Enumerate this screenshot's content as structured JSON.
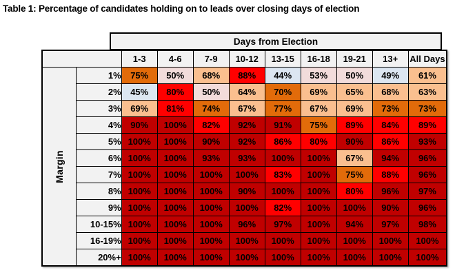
{
  "title": "Table 1: Percentage of candidates holding on to leads over closing days of election",
  "table": {
    "column_group_header": "Days from Election",
    "row_group_header": "Margin",
    "columns": [
      "1-3",
      "4-6",
      "7-9",
      "10-12",
      "13-15",
      "16-18",
      "19-21",
      "13+",
      "All Days"
    ],
    "rows": [
      "1%",
      "2%",
      "3%",
      "4%",
      "5%",
      "6%",
      "7%",
      "8%",
      "9%",
      "10-15%",
      "16-19%",
      "20%+"
    ],
    "value_suffix": "%"
  },
  "chart_data": {
    "type": "heatmap",
    "title": "Table 1: Percentage of candidates holding on to leads over closing days of election",
    "xlabel": "Days from Election",
    "ylabel": "Margin",
    "categories_x": [
      "1-3",
      "4-6",
      "7-9",
      "10-12",
      "13-15",
      "16-18",
      "19-21",
      "13+",
      "All Days"
    ],
    "categories_y": [
      "1%",
      "2%",
      "3%",
      "4%",
      "5%",
      "6%",
      "7%",
      "8%",
      "9%",
      "10-15%",
      "16-19%",
      "20%+"
    ],
    "values": [
      [
        75,
        50,
        68,
        88,
        44,
        53,
        50,
        49,
        61
      ],
      [
        45,
        80,
        50,
        64,
        70,
        69,
        65,
        68,
        63
      ],
      [
        69,
        81,
        74,
        67,
        77,
        67,
        69,
        73,
        73
      ],
      [
        90,
        100,
        82,
        92,
        91,
        75,
        89,
        84,
        89
      ],
      [
        100,
        100,
        90,
        92,
        86,
        80,
        90,
        86,
        93
      ],
      [
        100,
        100,
        93,
        93,
        100,
        100,
        67,
        94,
        96
      ],
      [
        100,
        100,
        100,
        100,
        83,
        100,
        75,
        88,
        96
      ],
      [
        100,
        100,
        100,
        90,
        100,
        100,
        80,
        96,
        97
      ],
      [
        100,
        100,
        100,
        100,
        82,
        100,
        100,
        90,
        96
      ],
      [
        100,
        100,
        100,
        96,
        97,
        100,
        94,
        97,
        98
      ],
      [
        100,
        100,
        100,
        100,
        100,
        100,
        100,
        100,
        100
      ],
      [
        100,
        100,
        100,
        100,
        100,
        100,
        100,
        100,
        100
      ]
    ],
    "unit": "%",
    "grid": true,
    "legend": false
  },
  "colors": {
    "header_bg": "#F2F2F2",
    "border": "#000000",
    "text": "#000000",
    "scale_bins": [
      {
        "upto": 49,
        "color": "#DCE6F1"
      },
      {
        "upto": 59,
        "color": "#F2DCDB"
      },
      {
        "upto": 69,
        "color": "#FABF8F"
      },
      {
        "upto": 79,
        "color": "#E26B0A"
      },
      {
        "upto": 89,
        "color": "#FF0000"
      },
      {
        "upto": 100,
        "color": "#C00000"
      }
    ]
  }
}
